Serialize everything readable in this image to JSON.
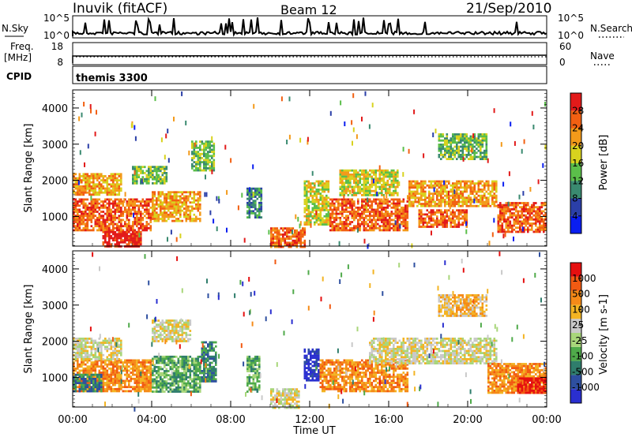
{
  "header": {
    "radar": "Inuvik (fitACF)",
    "beam": "Beam 12",
    "date": "21/Sep/2010"
  },
  "top_panels": {
    "nsky_label": "N.Sky",
    "nsky_ticks": [
      "10^5",
      "10^0"
    ],
    "nsearch_label": "N.Search",
    "nsearch_ticks": [
      "10^5",
      "10^0"
    ],
    "freq_label_1": "Freq.",
    "freq_label_2": "[MHz]",
    "freq_ticks": [
      "18",
      "8"
    ],
    "nave_label": "Nave",
    "nave_ticks": [
      "60",
      "0"
    ],
    "cpid_label": "CPID",
    "cpid_value": "themis 3300"
  },
  "chart_data": [
    {
      "type": "heatmap",
      "name": "power",
      "ylabel": "Slant Range [km]",
      "yticks": [
        1000,
        2000,
        3000,
        4000
      ],
      "ylim": [
        180,
        4500
      ],
      "colorbar_label": "Power [dB]",
      "colorbar_ticks": [
        "28",
        "24",
        "20",
        "16",
        "12",
        "8",
        "4"
      ],
      "colors": [
        "#0a1ef0",
        "#2b3fa8",
        "#3a8a70",
        "#5bbf4a",
        "#d8d21e",
        "#f39a1a",
        "#f26012",
        "#e21a1a"
      ],
      "regions": [
        {
          "t": [
            0.0,
            4.0
          ],
          "r": [
            600,
            1500
          ],
          "level": 6
        },
        {
          "t": [
            0.0,
            2.5
          ],
          "r": [
            1600,
            2200
          ],
          "level": 5
        },
        {
          "t": [
            1.5,
            3.5
          ],
          "r": [
            180,
            600
          ],
          "level": 7
        },
        {
          "t": [
            3.0,
            4.8
          ],
          "r": [
            1900,
            2400
          ],
          "level": 3
        },
        {
          "t": [
            4.0,
            6.5
          ],
          "r": [
            900,
            1700
          ],
          "level": 5
        },
        {
          "t": [
            6.0,
            7.2
          ],
          "r": [
            2300,
            3100
          ],
          "level": 3
        },
        {
          "t": [
            8.8,
            9.6
          ],
          "r": [
            1000,
            1800
          ],
          "level": 2
        },
        {
          "t": [
            10.0,
            11.8
          ],
          "r": [
            180,
            700
          ],
          "level": 6
        },
        {
          "t": [
            11.7,
            13.0
          ],
          "r": [
            800,
            2000
          ],
          "level": 4
        },
        {
          "t": [
            13.0,
            17.0
          ],
          "r": [
            600,
            1500
          ],
          "level": 6
        },
        {
          "t": [
            13.5,
            16.5
          ],
          "r": [
            1600,
            2300
          ],
          "level": 4
        },
        {
          "t": [
            17.0,
            21.5
          ],
          "r": [
            1300,
            2000
          ],
          "level": 5
        },
        {
          "t": [
            18.5,
            21.0
          ],
          "r": [
            2600,
            3300
          ],
          "level": 3
        },
        {
          "t": [
            21.5,
            24.0
          ],
          "r": [
            600,
            1400
          ],
          "level": 6
        },
        {
          "t": [
            17.5,
            20.0
          ],
          "r": [
            700,
            1200
          ],
          "level": 6
        }
      ]
    },
    {
      "type": "heatmap",
      "name": "velocity",
      "ylabel": "Slant Range [km]",
      "xlabel": "Time UT",
      "xticks": [
        "00:00",
        "04:00",
        "08:00",
        "12:00",
        "16:00",
        "20:00",
        "00:00"
      ],
      "yticks": [
        1000,
        2000,
        3000,
        4000
      ],
      "ylim": [
        180,
        4500
      ],
      "colorbar_label": "Velocity [m s-1]",
      "colorbar_ticks": [
        "1000",
        "500",
        "100",
        "25",
        "-25",
        "-100",
        "-500",
        "-1000"
      ],
      "colors": [
        "#2a2fd0",
        "#2e4fa0",
        "#2f7d6c",
        "#4faa4a",
        "#a8d67a",
        "#c9c9c9",
        "#f3b423",
        "#f58a18",
        "#f25a12",
        "#e51010"
      ],
      "regions": [
        {
          "t": [
            0.0,
            4.0
          ],
          "r": [
            600,
            1500
          ],
          "level": 7
        },
        {
          "t": [
            0.0,
            1.5
          ],
          "r": [
            600,
            1100
          ],
          "level": 2
        },
        {
          "t": [
            0.0,
            2.5
          ],
          "r": [
            1500,
            2100
          ],
          "level": 5
        },
        {
          "t": [
            4.0,
            6.5
          ],
          "r": [
            600,
            1600
          ],
          "level": 3
        },
        {
          "t": [
            4.0,
            6.0
          ],
          "r": [
            2000,
            2600
          ],
          "level": 5
        },
        {
          "t": [
            6.5,
            7.3
          ],
          "r": [
            900,
            2000
          ],
          "level": 2
        },
        {
          "t": [
            8.8,
            9.5
          ],
          "r": [
            600,
            1600
          ],
          "level": 3
        },
        {
          "t": [
            10.0,
            11.5
          ],
          "r": [
            180,
            700
          ],
          "level": 5
        },
        {
          "t": [
            11.7,
            12.5
          ],
          "r": [
            900,
            1800
          ],
          "level": 0
        },
        {
          "t": [
            12.5,
            17.0
          ],
          "r": [
            600,
            1500
          ],
          "level": 7
        },
        {
          "t": [
            15.0,
            21.5
          ],
          "r": [
            1400,
            2100
          ],
          "level": 5
        },
        {
          "t": [
            18.5,
            21.0
          ],
          "r": [
            2700,
            3300
          ],
          "level": 6
        },
        {
          "t": [
            21.0,
            24.0
          ],
          "r": [
            600,
            1400
          ],
          "level": 7
        },
        {
          "t": [
            22.5,
            24.0
          ],
          "r": [
            600,
            1000
          ],
          "level": 9
        }
      ]
    }
  ]
}
